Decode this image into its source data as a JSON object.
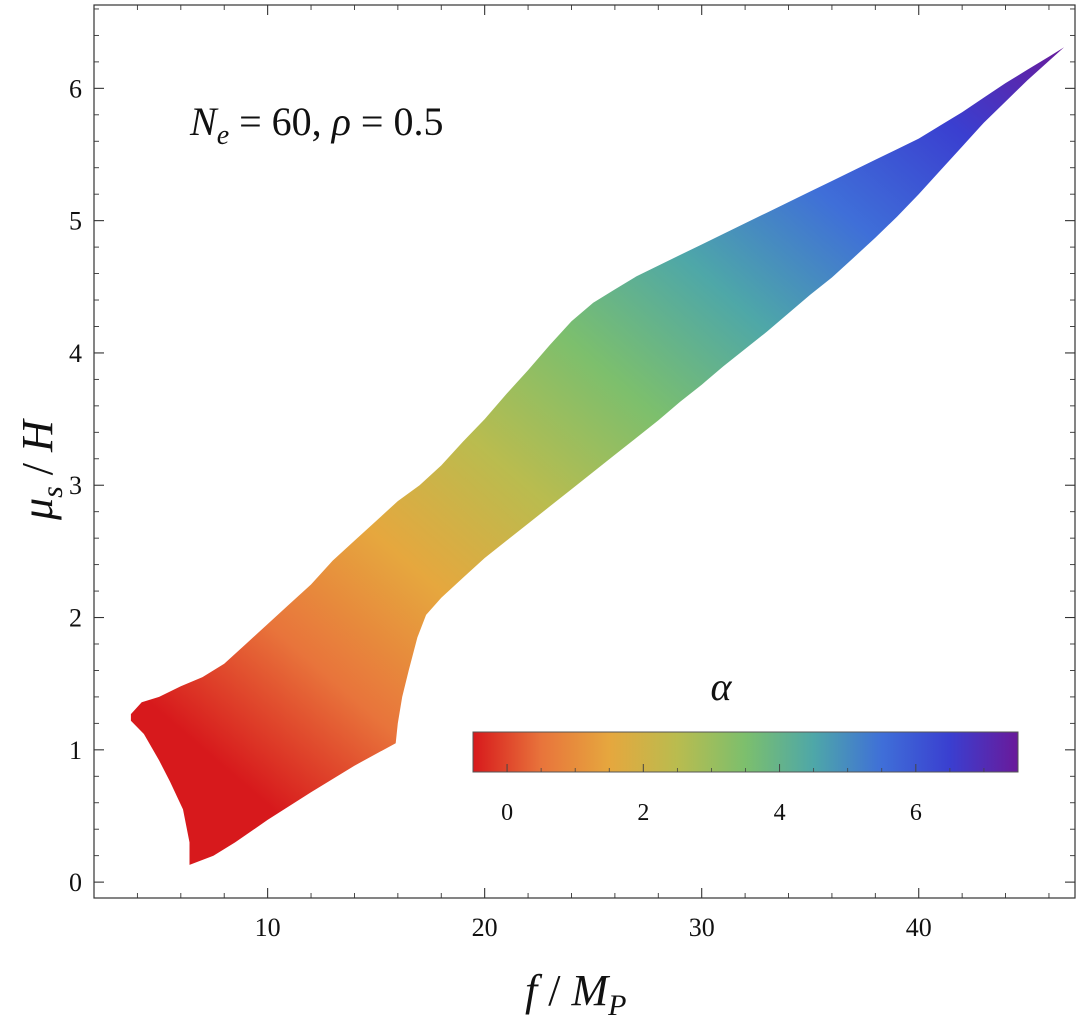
{
  "chart_data": {
    "type": "heatmap",
    "annotation": {
      "N": "N",
      "N_sub": "e",
      "eq1": " = 60, ",
      "rho": "ρ",
      "eq2": " = 0.5"
    },
    "xlabel": {
      "f": "f",
      "slash": " / ",
      "M": "M",
      "M_sub": "P"
    },
    "ylabel": {
      "mu": "μ",
      "mu_sub": "s",
      "slash": " / ",
      "H": "H"
    },
    "xlim": [
      2.0,
      47.2
    ],
    "ylim": [
      -0.12,
      6.63
    ],
    "x_ticks": [
      10,
      20,
      30,
      40
    ],
    "y_ticks": [
      0,
      1,
      2,
      3,
      4,
      5,
      6
    ],
    "region": {
      "description_of_shape": "colored band of allowed parameter space",
      "upper_boundary": [
        [
          3.7,
          1.27
        ],
        [
          4.2,
          1.36
        ],
        [
          5.0,
          1.4
        ],
        [
          6.0,
          1.48
        ],
        [
          7.0,
          1.55
        ],
        [
          8.0,
          1.65
        ],
        [
          9.0,
          1.8
        ],
        [
          10.0,
          1.95
        ],
        [
          11.0,
          2.1
        ],
        [
          12.0,
          2.25
        ],
        [
          13.0,
          2.43
        ],
        [
          14.0,
          2.58
        ],
        [
          15.0,
          2.73
        ],
        [
          16.0,
          2.88
        ],
        [
          17.0,
          3.0
        ],
        [
          18.0,
          3.15
        ],
        [
          19.0,
          3.33
        ],
        [
          20.0,
          3.5
        ],
        [
          21.0,
          3.69
        ],
        [
          22.0,
          3.87
        ],
        [
          23.0,
          4.06
        ],
        [
          24.0,
          4.24
        ],
        [
          25.0,
          4.38
        ],
        [
          26.0,
          4.48
        ],
        [
          27.0,
          4.58
        ],
        [
          28.0,
          4.66
        ],
        [
          29.0,
          4.74
        ],
        [
          30.0,
          4.82
        ],
        [
          31.0,
          4.9
        ],
        [
          32.0,
          4.98
        ],
        [
          33.0,
          5.06
        ],
        [
          34.0,
          5.14
        ],
        [
          35.0,
          5.22
        ],
        [
          36.0,
          5.3
        ],
        [
          37.0,
          5.38
        ],
        [
          38.0,
          5.46
        ],
        [
          39.0,
          5.54
        ],
        [
          40.0,
          5.62
        ],
        [
          41.0,
          5.72
        ],
        [
          42.0,
          5.82
        ],
        [
          43.0,
          5.93
        ],
        [
          44.0,
          6.04
        ],
        [
          45.0,
          6.14
        ],
        [
          46.0,
          6.24
        ],
        [
          46.7,
          6.31
        ]
      ],
      "lower_boundary": [
        [
          46.7,
          6.31
        ],
        [
          45.0,
          6.06
        ],
        [
          44.0,
          5.9
        ],
        [
          43.0,
          5.74
        ],
        [
          42.0,
          5.56
        ],
        [
          41.0,
          5.38
        ],
        [
          40.0,
          5.2
        ],
        [
          39.0,
          5.03
        ],
        [
          38.0,
          4.87
        ],
        [
          37.0,
          4.72
        ],
        [
          36.0,
          4.57
        ],
        [
          35.0,
          4.44
        ],
        [
          34.0,
          4.3
        ],
        [
          33.0,
          4.16
        ],
        [
          32.0,
          4.03
        ],
        [
          31.0,
          3.9
        ],
        [
          30.0,
          3.76
        ],
        [
          29.0,
          3.63
        ],
        [
          28.0,
          3.49
        ],
        [
          27.0,
          3.36
        ],
        [
          26.0,
          3.23
        ],
        [
          25.0,
          3.1
        ],
        [
          24.0,
          2.97
        ],
        [
          23.0,
          2.84
        ],
        [
          22.0,
          2.71
        ],
        [
          21.0,
          2.58
        ],
        [
          20.0,
          2.45
        ],
        [
          19.0,
          2.3
        ],
        [
          18.0,
          2.15
        ],
        [
          17.3,
          2.02
        ],
        [
          16.9,
          1.85
        ],
        [
          16.5,
          1.6
        ],
        [
          16.2,
          1.4
        ],
        [
          16.0,
          1.2
        ],
        [
          15.9,
          1.05
        ],
        [
          14.0,
          0.88
        ],
        [
          12.0,
          0.68
        ],
        [
          10.0,
          0.47
        ],
        [
          8.5,
          0.3
        ],
        [
          7.5,
          0.2
        ],
        [
          6.4,
          0.13
        ],
        [
          6.4,
          0.3
        ],
        [
          6.1,
          0.55
        ],
        [
          5.5,
          0.76
        ],
        [
          5.0,
          0.92
        ],
        [
          4.3,
          1.12
        ],
        [
          3.7,
          1.22
        ],
        [
          3.7,
          1.27
        ]
      ]
    },
    "colorbar": {
      "label": "α",
      "range": [
        -0.5,
        7.5
      ],
      "tick_labels": [
        0,
        2,
        4,
        6
      ],
      "colors": [
        "#d7191c",
        "#e8743b",
        "#e6a73e",
        "#b9bc4f",
        "#7cbf6d",
        "#4ea7a8",
        "#3f6fd8",
        "#3a3fd0",
        "#6a1a9a"
      ]
    }
  }
}
